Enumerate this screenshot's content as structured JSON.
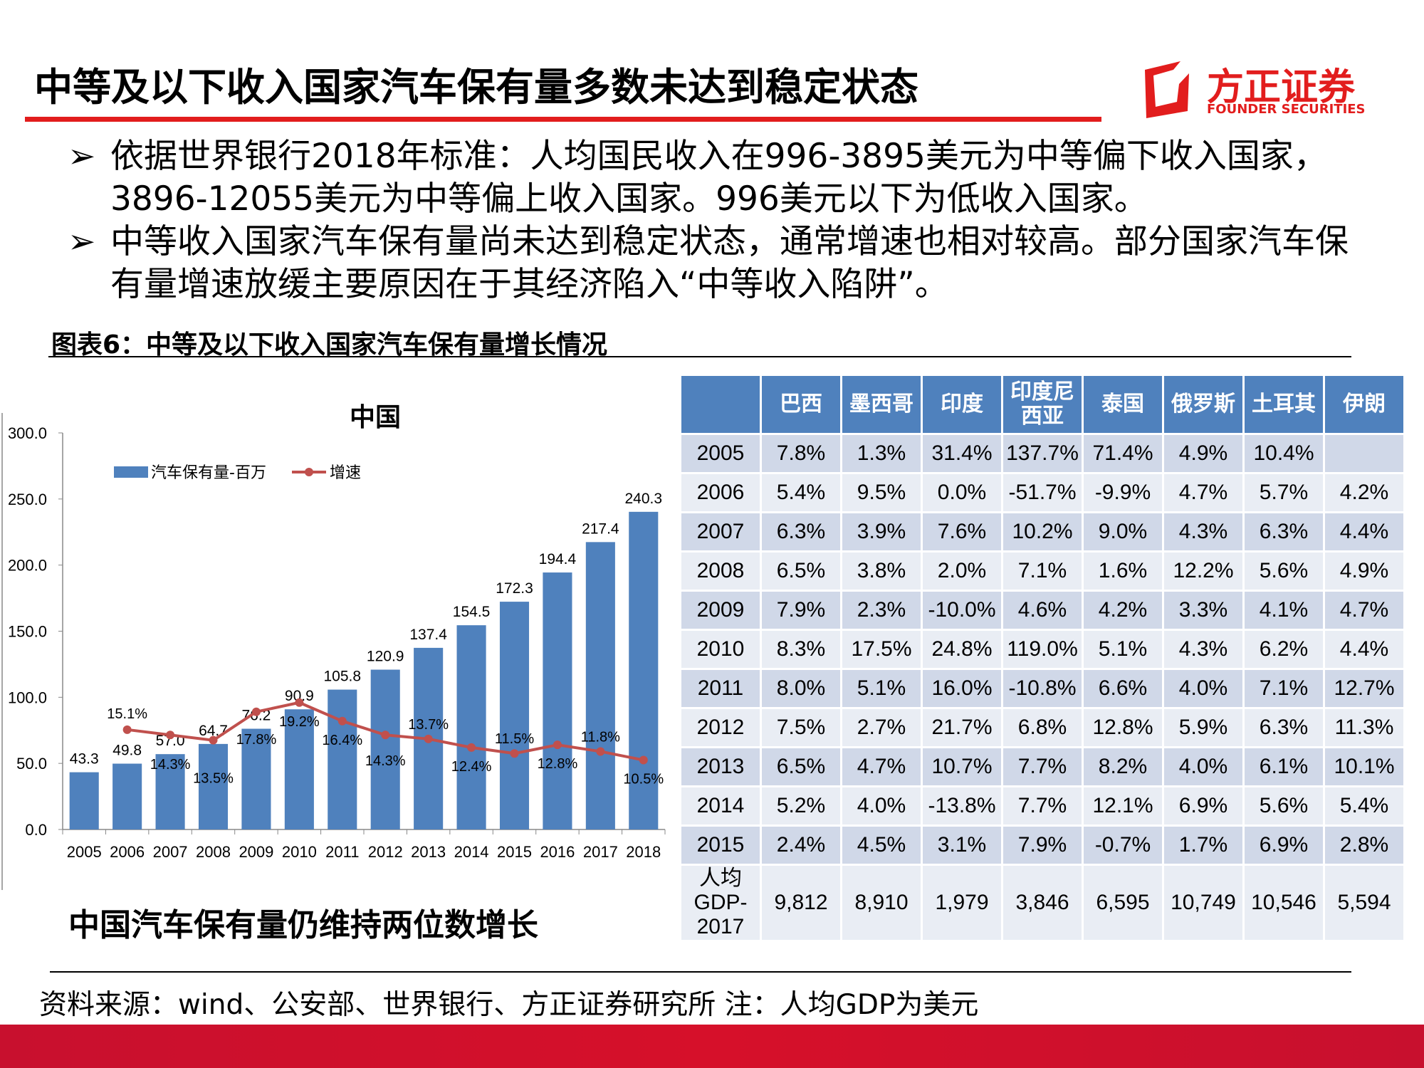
{
  "title": "中等及以下收入国家汽车保有量多数未达到稳定状态",
  "logo": {
    "cn": "方正证券",
    "en": "FOUNDER SECURITIES",
    "color": "#e21d1d"
  },
  "bullets": [
    "依据世界银行2018年标准：人均国民收入在996-3895美元为中等偏下收入国家，3896-12055美元为中等偏上收入国家。996美元以下为低收入国家。",
    "中等收入国家汽车保有量尚未达到稳定状态，通常增速也相对较高。部分国家汽车保有量增速放缓主要原因在于其经济陷入“中等收入陷阱”。"
  ],
  "bullet_icon": "arrowhead-right-icon",
  "caption": "图表6：中等及以下收入国家汽车保有量增长情况",
  "chart_data": {
    "type": "bar+line",
    "title": "中国",
    "categories": [
      "2005",
      "2006",
      "2007",
      "2008",
      "2009",
      "2010",
      "2011",
      "2012",
      "2013",
      "2014",
      "2015",
      "2016",
      "2017",
      "2018"
    ],
    "y_ticks": [
      "0.0",
      "50.0",
      "100.0",
      "150.0",
      "200.0",
      "250.0",
      "300.0"
    ],
    "ylim": [
      0,
      300
    ],
    "legend_position": "top-left",
    "series": [
      {
        "name": "汽车保有量-百万",
        "type": "bar",
        "color": "#4f81bd",
        "values": [
          43.3,
          49.8,
          57.0,
          64.7,
          76.2,
          90.9,
          105.8,
          120.9,
          137.4,
          154.5,
          172.3,
          194.4,
          217.4,
          240.3
        ],
        "labels": [
          "43.3",
          "49.8",
          "57.0",
          "64.7",
          "76.2",
          "90.9",
          "105.8",
          "120.9",
          "137.4",
          "154.5",
          "172.3",
          "194.4",
          "217.4",
          "240.3"
        ]
      },
      {
        "name": "增速",
        "type": "line",
        "color": "#c0504d",
        "secondary_ylim_percent": [
          0,
          60
        ],
        "values": [
          null,
          15.1,
          14.3,
          13.5,
          17.8,
          19.2,
          16.4,
          14.3,
          13.7,
          12.4,
          11.5,
          12.8,
          11.8,
          10.5
        ],
        "labels": [
          "",
          "15.1%",
          "14.3%",
          "13.5%",
          "17.8%",
          "19.2%",
          "16.4%",
          "14.3%",
          "13.7%",
          "12.4%",
          "11.5%",
          "12.8%",
          "11.8%",
          "10.5%"
        ]
      }
    ]
  },
  "table": {
    "headers": [
      "",
      "巴西",
      "墨西哥",
      "印度",
      "印度尼西亚",
      "泰国",
      "俄罗斯",
      "土耳其",
      "伊朗"
    ],
    "rows": [
      [
        "2005",
        "7.8%",
        "1.3%",
        "31.4%",
        "137.7%",
        "71.4%",
        "4.9%",
        "10.4%",
        ""
      ],
      [
        "2006",
        "5.4%",
        "9.5%",
        "0.0%",
        "-51.7%",
        "-9.9%",
        "4.7%",
        "5.7%",
        "4.2%"
      ],
      [
        "2007",
        "6.3%",
        "3.9%",
        "7.6%",
        "10.2%",
        "9.0%",
        "4.3%",
        "6.3%",
        "4.4%"
      ],
      [
        "2008",
        "6.5%",
        "3.8%",
        "2.0%",
        "7.1%",
        "1.6%",
        "12.2%",
        "5.6%",
        "4.9%"
      ],
      [
        "2009",
        "7.9%",
        "2.3%",
        "-10.0%",
        "4.6%",
        "4.2%",
        "3.3%",
        "4.1%",
        "4.7%"
      ],
      [
        "2010",
        "8.3%",
        "17.5%",
        "24.8%",
        "119.0%",
        "5.1%",
        "4.3%",
        "6.2%",
        "4.4%"
      ],
      [
        "2011",
        "8.0%",
        "5.1%",
        "16.0%",
        "-10.8%",
        "6.6%",
        "4.0%",
        "7.1%",
        "12.7%"
      ],
      [
        "2012",
        "7.5%",
        "2.7%",
        "21.7%",
        "6.8%",
        "12.8%",
        "5.9%",
        "6.3%",
        "11.3%"
      ],
      [
        "2013",
        "6.5%",
        "4.7%",
        "10.7%",
        "7.7%",
        "8.2%",
        "4.0%",
        "6.1%",
        "10.1%"
      ],
      [
        "2014",
        "5.2%",
        "4.0%",
        "-13.8%",
        "7.7%",
        "12.1%",
        "6.9%",
        "5.6%",
        "5.4%"
      ],
      [
        "2015",
        "2.4%",
        "4.5%",
        "3.1%",
        "7.9%",
        "-0.7%",
        "1.7%",
        "6.9%",
        "2.8%"
      ],
      [
        "人均GDP-2017",
        "9,812",
        "8,910",
        "1,979",
        "3,846",
        "6,595",
        "10,749",
        "10,546",
        "5,594"
      ]
    ],
    "header_color": "#4f81bd"
  },
  "subtitle": "中国汽车保有量仍维持两位数增长",
  "source": "资料来源：wind、公安部、世界银行、方正证券研究所  注：人均GDP为美元"
}
